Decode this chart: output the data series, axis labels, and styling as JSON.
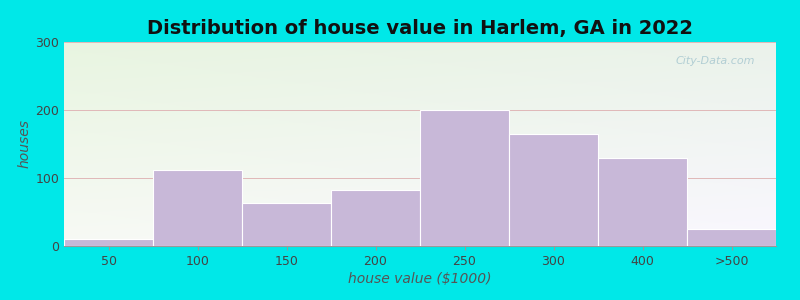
{
  "title": "Distribution of house value in Harlem, GA in 2022",
  "xlabel": "house value ($1000)",
  "ylabel": "houses",
  "bar_labels": [
    "50",
    "100",
    "150",
    "200",
    "250",
    "300",
    "400",
    ">500"
  ],
  "bar_values": [
    10,
    112,
    63,
    83,
    200,
    165,
    130,
    25
  ],
  "bar_color": "#c8b8d8",
  "bar_edge_color": "#ffffff",
  "ylim": [
    0,
    300
  ],
  "yticks": [
    0,
    100,
    200,
    300
  ],
  "grid_color": "#e0b8b8",
  "title_fontsize": 14,
  "label_fontsize": 10,
  "tick_fontsize": 9,
  "bg_outer": "#00e8e8",
  "bg_plot_top_left": "#d8efd0",
  "bg_plot_bottom_right": "#f8f4fc",
  "watermark_text": "City-Data.com",
  "watermark_color": "#a8c8d0"
}
